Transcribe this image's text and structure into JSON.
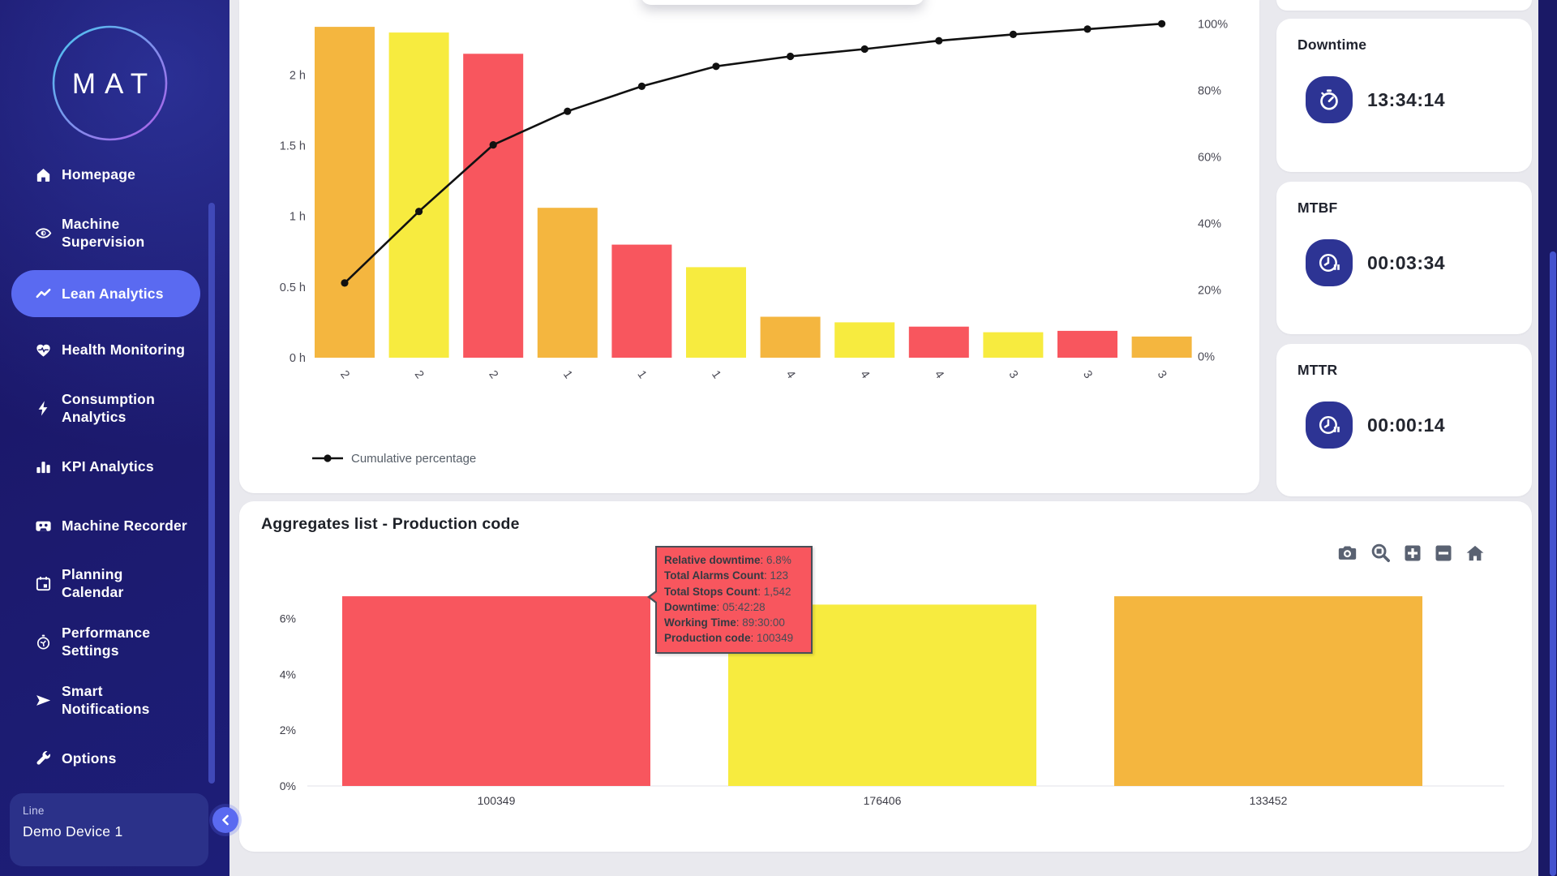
{
  "colors": {
    "red": "#F8565E",
    "yellow": "#F7EB3F",
    "orange": "#F4B63F",
    "navy": "#1C1A6E",
    "accent": "#5A6AF1",
    "badge": "#2D3494",
    "line": "#111111"
  },
  "sidebar": {
    "logo": "MAT",
    "items": [
      {
        "label": "Homepage",
        "icon": "home-icon"
      },
      {
        "label": "Machine\nSupervision",
        "icon": "eye-icon"
      },
      {
        "label": "Lean Analytics",
        "icon": "trend-icon",
        "active": true
      },
      {
        "label": "Health Monitoring",
        "icon": "heart-pulse-icon"
      },
      {
        "label": "Consumption\nAnalytics",
        "icon": "bolt-icon"
      },
      {
        "label": "KPI Analytics",
        "icon": "bar-chart-icon"
      },
      {
        "label": "Machine Recorder",
        "icon": "cassette-icon"
      },
      {
        "label": "Planning\nCalendar",
        "icon": "calendar-icon"
      },
      {
        "label": "Performance\nSettings",
        "icon": "stopwatch-icon"
      },
      {
        "label": "Smart\nNotifications",
        "icon": "paper-plane-icon"
      },
      {
        "label": "Options",
        "icon": "wrench-icon"
      }
    ],
    "device_selector": {
      "label": "Line",
      "value": "Demo Device 1"
    }
  },
  "kpi_cards": [
    {
      "title": "Downtime",
      "value": "13:34:14",
      "icon": "stopwatch-icon"
    },
    {
      "title": "MTBF",
      "value": "00:03:34",
      "icon": "clock-pause-icon"
    },
    {
      "title": "MTTR",
      "value": "00:00:14",
      "icon": "clock-pause-icon"
    }
  ],
  "aggregates": {
    "title": "Aggregates list - Production code",
    "toolbar": [
      "camera-icon",
      "zoom-icon",
      "zoom-in-icon",
      "zoom-out-icon",
      "home-icon"
    ]
  },
  "tooltip": {
    "lines": [
      {
        "label": "Relative downtime",
        "value": "6.8%"
      },
      {
        "label": "Total Alarms Count",
        "value": "123"
      },
      {
        "label": "Total Stops Count",
        "value": "1,542"
      },
      {
        "label": "Downtime",
        "value": "05:42:28"
      },
      {
        "label": "Working Time",
        "value": "89:30:00"
      },
      {
        "label": "Production code",
        "value": "100349"
      }
    ]
  },
  "chart_data": [
    {
      "type": "pareto",
      "categories": [
        "2",
        "2",
        "2",
        "1",
        "1",
        "1",
        "4",
        "4",
        "4",
        "3",
        "3",
        "3"
      ],
      "bar_values_hours": [
        2.34,
        2.3,
        2.15,
        1.06,
        0.8,
        0.64,
        0.29,
        0.25,
        0.22,
        0.18,
        0.19,
        0.15
      ],
      "bar_colors": [
        "orange",
        "yellow",
        "red",
        "orange",
        "red",
        "yellow",
        "orange",
        "yellow",
        "red",
        "yellow",
        "red",
        "orange"
      ],
      "series": [
        {
          "name": "Cumulative percentage",
          "values": [
            22.1,
            43.6,
            63.6,
            73.7,
            81.2,
            87.2,
            90.2,
            92.4,
            94.9,
            96.8,
            98.4,
            100
          ]
        }
      ],
      "y_left": {
        "ticks": [
          "0 h",
          "0.5 h",
          "1 h",
          "1.5 h",
          "2 h"
        ],
        "ylim_hours": [
          0,
          2.53
        ]
      },
      "y_right": {
        "ticks": [
          "0%",
          "20%",
          "40%",
          "60%",
          "80%",
          "100%"
        ],
        "ylim_percent": [
          0,
          107
        ]
      },
      "legend": "Cumulative percentage",
      "legend_position": "bottom-left",
      "grid": false
    },
    {
      "type": "bar",
      "title": "Aggregates list - Production code",
      "categories": [
        "100349",
        "176406",
        "133452"
      ],
      "values_percent": [
        6.8,
        6.5,
        6.8
      ],
      "bar_colors": [
        "red",
        "yellow",
        "orange"
      ],
      "y_ticks": [
        "0%",
        "2%",
        "4%",
        "6%"
      ],
      "ylim": [
        0,
        7.3
      ],
      "grid": false
    }
  ]
}
